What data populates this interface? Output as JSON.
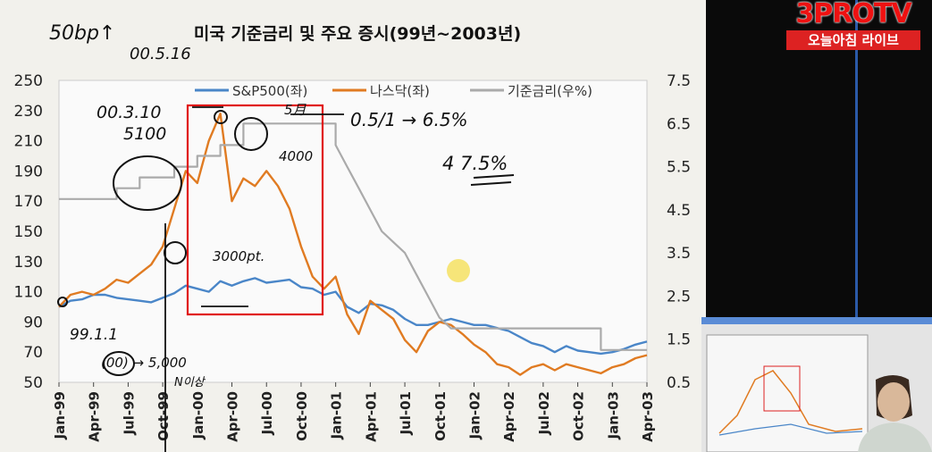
{
  "chart_data": {
    "type": "line",
    "title": "미국 기준금리 및 주요 증시(99년~2003년)",
    "left_axis": {
      "range": [
        50,
        250
      ],
      "ticks": [
        "250",
        "230",
        "210",
        "190",
        "170",
        "150",
        "130",
        "110",
        "90",
        "70",
        "50"
      ]
    },
    "right_axis": {
      "range": [
        0.5,
        7.5
      ],
      "ticks": [
        "7.5",
        "6.5",
        "5.5",
        "4.5",
        "3.5",
        "2.5",
        "1.5",
        "0.5"
      ]
    },
    "x_ticks": [
      "Jan-99",
      "Apr-99",
      "Jul-99",
      "Oct-99",
      "Jan-00",
      "Apr-00",
      "Jul-00",
      "Oct-00",
      "Jan-01",
      "Apr-01",
      "Jul-01",
      "Oct-01",
      "Jan-02",
      "Apr-02",
      "Jul-02",
      "Oct-02",
      "Jan-03",
      "Apr-03"
    ],
    "legend": [
      "S&P500(좌)",
      "나스닥(좌)",
      "기준금리(우%)"
    ],
    "series": [
      {
        "name": "S&P500(좌)",
        "color": "#4a86c8",
        "axis": "left",
        "points": [
          [
            0,
            100
          ],
          [
            1,
            104
          ],
          [
            2,
            105
          ],
          [
            3,
            108
          ],
          [
            4,
            108
          ],
          [
            5,
            106
          ],
          [
            6,
            105
          ],
          [
            7,
            104
          ],
          [
            8,
            103
          ],
          [
            9,
            106
          ],
          [
            10,
            109
          ],
          [
            11,
            114
          ],
          [
            12,
            112
          ],
          [
            13,
            110
          ],
          [
            14,
            117
          ],
          [
            15,
            114
          ],
          [
            16,
            117
          ],
          [
            17,
            119
          ],
          [
            18,
            116
          ],
          [
            19,
            117
          ],
          [
            20,
            118
          ],
          [
            21,
            113
          ],
          [
            22,
            112
          ],
          [
            23,
            108
          ],
          [
            24,
            110
          ],
          [
            25,
            100
          ],
          [
            26,
            96
          ],
          [
            27,
            102
          ],
          [
            28,
            101
          ],
          [
            29,
            98
          ],
          [
            30,
            92
          ],
          [
            31,
            88
          ],
          [
            32,
            88
          ],
          [
            33,
            90
          ],
          [
            34,
            92
          ],
          [
            35,
            90
          ],
          [
            36,
            88
          ],
          [
            37,
            88
          ],
          [
            38,
            86
          ],
          [
            39,
            84
          ],
          [
            40,
            80
          ],
          [
            41,
            76
          ],
          [
            42,
            74
          ],
          [
            43,
            70
          ],
          [
            44,
            74
          ],
          [
            45,
            71
          ],
          [
            46,
            70
          ],
          [
            47,
            69
          ],
          [
            48,
            70
          ],
          [
            49,
            72
          ],
          [
            50,
            75
          ],
          [
            51,
            77
          ]
        ]
      },
      {
        "name": "나스닥(좌)",
        "color": "#e07b22",
        "axis": "left",
        "points": [
          [
            0,
            100
          ],
          [
            1,
            108
          ],
          [
            2,
            110
          ],
          [
            3,
            108
          ],
          [
            4,
            112
          ],
          [
            5,
            118
          ],
          [
            6,
            116
          ],
          [
            7,
            122
          ],
          [
            8,
            128
          ],
          [
            9,
            140
          ],
          [
            10,
            165
          ],
          [
            11,
            190
          ],
          [
            12,
            182
          ],
          [
            13,
            210
          ],
          [
            14,
            228
          ],
          [
            15,
            170
          ],
          [
            16,
            185
          ],
          [
            17,
            180
          ],
          [
            18,
            190
          ],
          [
            19,
            180
          ],
          [
            20,
            165
          ],
          [
            21,
            140
          ],
          [
            22,
            120
          ],
          [
            23,
            112
          ],
          [
            24,
            120
          ],
          [
            25,
            95
          ],
          [
            26,
            82
          ],
          [
            27,
            104
          ],
          [
            28,
            98
          ],
          [
            29,
            92
          ],
          [
            30,
            78
          ],
          [
            31,
            70
          ],
          [
            32,
            84
          ],
          [
            33,
            90
          ],
          [
            34,
            88
          ],
          [
            35,
            82
          ],
          [
            36,
            75
          ],
          [
            37,
            70
          ],
          [
            38,
            62
          ],
          [
            39,
            60
          ],
          [
            40,
            55
          ],
          [
            41,
            60
          ],
          [
            42,
            62
          ],
          [
            43,
            58
          ],
          [
            44,
            62
          ],
          [
            45,
            60
          ],
          [
            46,
            58
          ],
          [
            47,
            56
          ],
          [
            48,
            60
          ],
          [
            49,
            62
          ],
          [
            50,
            66
          ],
          [
            51,
            68
          ]
        ]
      },
      {
        "name": "기준금리(우%)",
        "color": "#aaaaaa",
        "axis": "right",
        "points": [
          [
            0,
            4.75
          ],
          [
            5,
            4.75
          ],
          [
            5,
            5.0
          ],
          [
            7,
            5.0
          ],
          [
            7,
            5.25
          ],
          [
            10,
            5.25
          ],
          [
            10,
            5.5
          ],
          [
            12,
            5.5
          ],
          [
            12,
            5.75
          ],
          [
            14,
            5.75
          ],
          [
            14,
            6.0
          ],
          [
            16,
            6.0
          ],
          [
            16,
            6.5
          ],
          [
            24,
            6.5
          ],
          [
            24,
            6.0
          ],
          [
            25,
            5.5
          ],
          [
            26,
            5.0
          ],
          [
            27,
            4.5
          ],
          [
            28,
            4.0
          ],
          [
            29,
            3.75
          ],
          [
            30,
            3.5
          ],
          [
            31,
            3.0
          ],
          [
            32,
            2.5
          ],
          [
            33,
            2.0
          ],
          [
            34,
            1.75
          ],
          [
            47,
            1.75
          ],
          [
            47,
            1.25
          ],
          [
            51,
            1.25
          ]
        ]
      }
    ]
  },
  "annotations": {
    "a1": "50bp↑",
    "a2": "00.5.16",
    "a3": "00.3.10",
    "a4": "5100",
    "a5": "5月",
    "a6": "0.5/1 → 6.5%",
    "a7": "4  7.5%",
    "a8": "4000",
    "a9": "3000pt.",
    "a10": "99.1.1",
    "a11": "(00) → 5,000",
    "a12": "N이상"
  },
  "logo": {
    "title": "3PROTV",
    "subtitle": "오늘아침 라이브"
  }
}
